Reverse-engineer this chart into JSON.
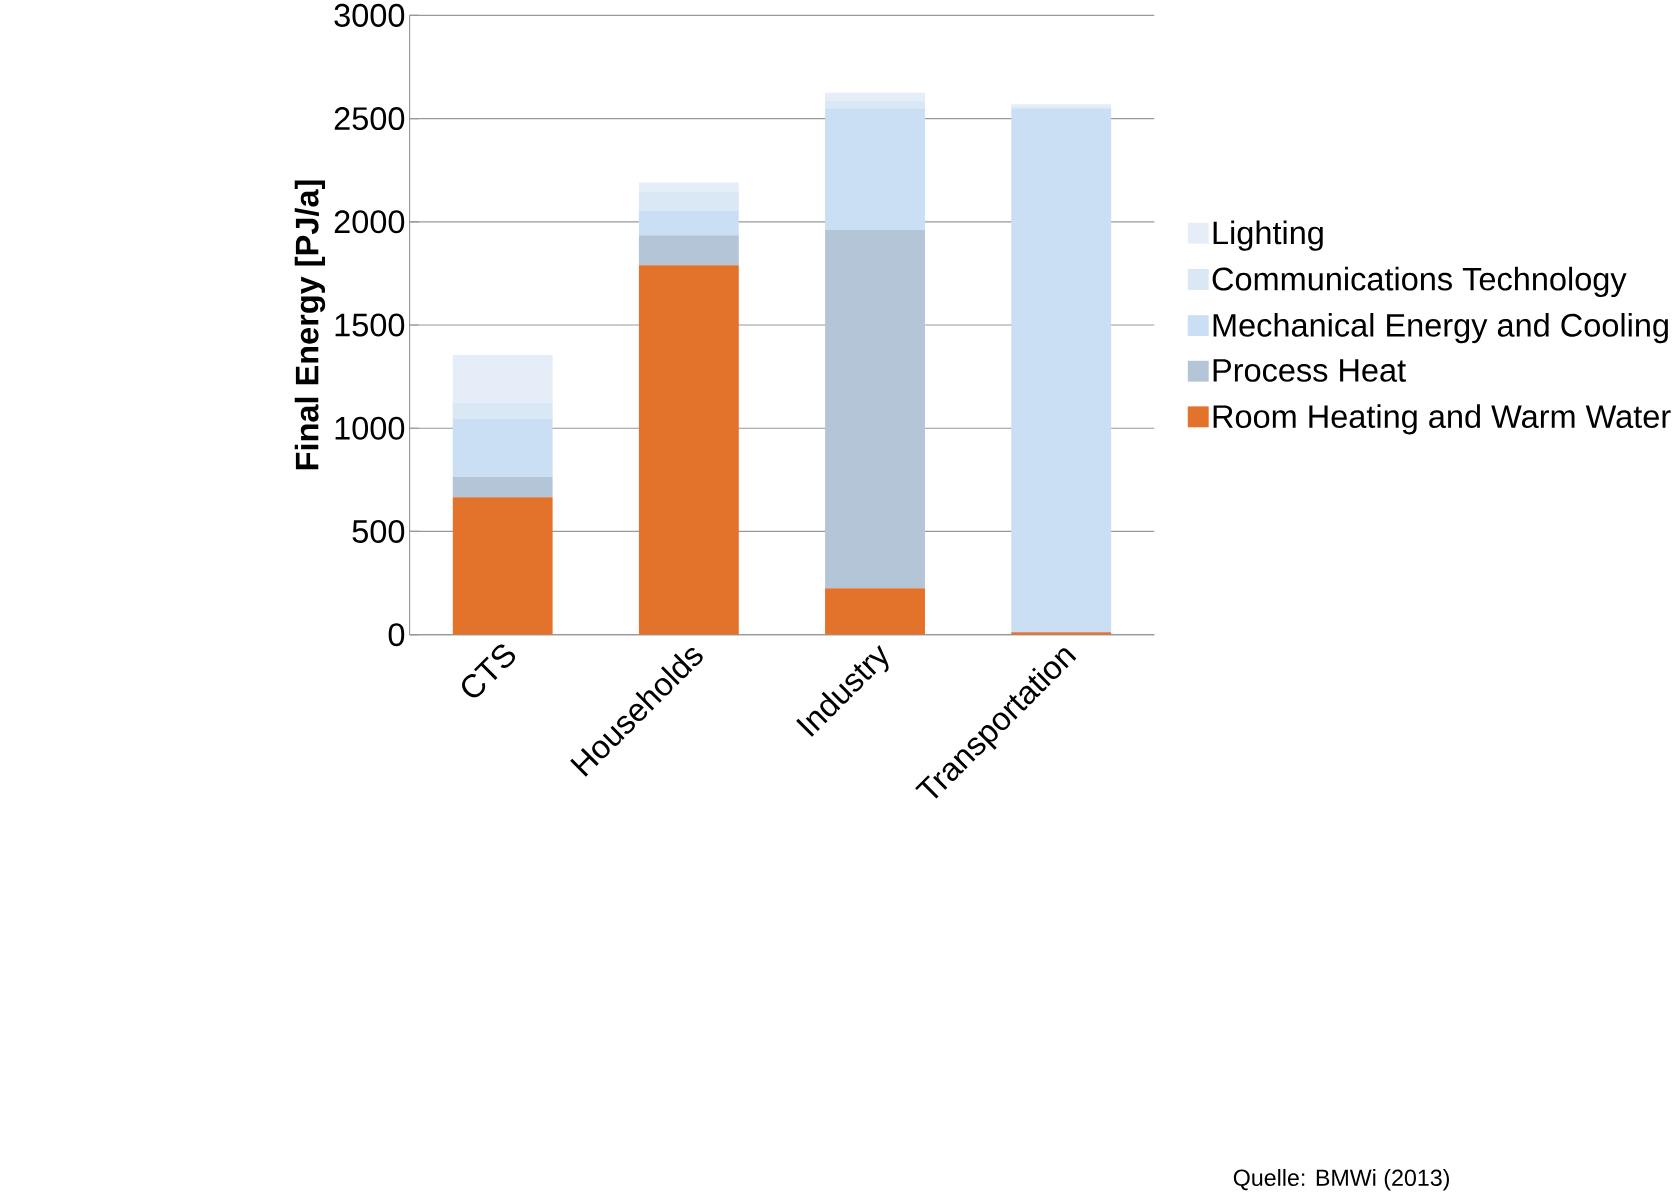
{
  "chart_data": {
    "type": "bar",
    "stacked": true,
    "ylabel": "Final Energy [PJ/a]",
    "categories": [
      "CTS",
      "Households",
      "Industry",
      "Transportation"
    ],
    "series": [
      {
        "name": "Room Heating and Warm Water",
        "color": "#e3722a",
        "values": [
          665,
          1790,
          225,
          12
        ]
      },
      {
        "name": "Process Heat",
        "color": "#b4c5d8",
        "values": [
          100,
          145,
          1735,
          0
        ]
      },
      {
        "name": "Mechanical Energy and Cooling",
        "color": "#cadff3",
        "values": [
          280,
          120,
          590,
          2535
        ]
      },
      {
        "name": "Communications Technology",
        "color": "#dae7f5",
        "values": [
          80,
          90,
          35,
          10
        ]
      },
      {
        "name": "Lighting",
        "color": "#e4edf8",
        "values": [
          230,
          45,
          40,
          12
        ]
      }
    ],
    "ylim": [
      0,
      3000
    ],
    "yticks": [
      0,
      500,
      1000,
      1500,
      2000,
      2500,
      3000
    ],
    "grid": "y",
    "legend": "right",
    "annotations": [
      "Quelle: BMWi (2013)"
    ]
  }
}
